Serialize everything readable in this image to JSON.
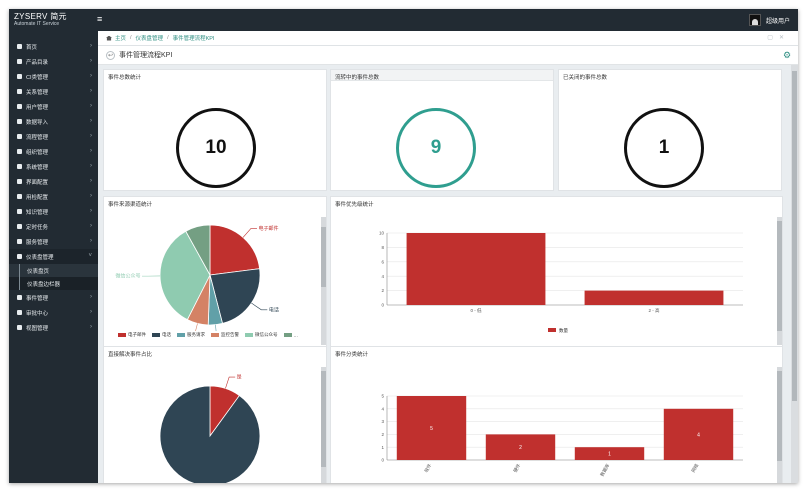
{
  "app": {
    "logo_main": "ZYSERV",
    "logo_cn": "简元",
    "logo_sub": "Automate IT Service",
    "user": "超级用户"
  },
  "sidebar": {
    "items": [
      {
        "label": "首页",
        "icon": "home-icon"
      },
      {
        "label": "产品目录",
        "icon": "catalog-icon"
      },
      {
        "label": "CI类管理",
        "icon": "ci-icon"
      },
      {
        "label": "关系管理",
        "icon": "relation-icon"
      },
      {
        "label": "用户管理",
        "icon": "user-icon"
      },
      {
        "label": "数据导入",
        "icon": "import-icon"
      },
      {
        "label": "流程管理",
        "icon": "flow-icon"
      },
      {
        "label": "组织管理",
        "icon": "org-icon"
      },
      {
        "label": "系统管理",
        "icon": "system-icon"
      },
      {
        "label": "界面配置",
        "icon": "ui-icon"
      },
      {
        "label": "用检配置",
        "icon": "check-icon"
      },
      {
        "label": "知识管理",
        "icon": "knowledge-icon"
      },
      {
        "label": "定时任务",
        "icon": "timer-icon"
      },
      {
        "label": "服务管理",
        "icon": "service-icon"
      },
      {
        "label": "仪表盘管理",
        "icon": "dashboard-icon"
      }
    ],
    "sub_items": [
      {
        "label": "仪表盘页"
      },
      {
        "label": "仪表盘边栏器"
      }
    ],
    "items_after": [
      {
        "label": "事件管理",
        "icon": "event-icon"
      },
      {
        "label": "审批中心",
        "icon": "approval-icon"
      },
      {
        "label": "视图管理",
        "icon": "view-icon"
      }
    ]
  },
  "breadcrumb": {
    "home": "主页",
    "level2": "仪表盘管理",
    "current": "事件管理流程KPI"
  },
  "page_title": "事件管理流程KPI",
  "kpis": [
    {
      "title": "事件总数统计",
      "value": "10",
      "color": "#111111"
    },
    {
      "title": "流转中的事件总数",
      "value": "9",
      "color": "#2f9e8f"
    },
    {
      "title": "已关闭的事件总数",
      "value": "1",
      "color": "#111111"
    }
  ],
  "colors": {
    "red": "#c0302e",
    "navy": "#2f4554",
    "teal": "#2f9e8f",
    "mint": "#8fcbb0",
    "salmon": "#d48265",
    "slate": "#61a0a8",
    "sage": "#749f83"
  },
  "chart_data": [
    {
      "type": "pie",
      "title": "事件来源渠道统计",
      "slices": [
        {
          "name": "电子邮件",
          "value": 2,
          "color": "#c0302e"
        },
        {
          "name": "电话",
          "value": 2,
          "color": "#2f4554"
        },
        {
          "name": "服务请求",
          "value": 0.4,
          "color": "#61a0a8"
        },
        {
          "name": "监控告警",
          "value": 0.6,
          "color": "#d48265"
        },
        {
          "name": "微信公众号",
          "value": 3,
          "color": "#8fcbb0"
        },
        {
          "name": "",
          "value": 0.7,
          "color": "#749f83"
        }
      ],
      "legend": [
        "电子邮件",
        "电话",
        "服务请求",
        "监控告警",
        "微信公众号",
        "…"
      ]
    },
    {
      "type": "bar",
      "title": "事件优先级统计",
      "categories": [
        "0 - 低",
        "2 - 高"
      ],
      "series": [
        {
          "name": "数量",
          "values": [
            10,
            2
          ]
        }
      ],
      "yticks": [
        0,
        2,
        4,
        6,
        8,
        10
      ],
      "ylim": [
        0,
        10
      ]
    },
    {
      "type": "pie",
      "title": "直接解决事件占比",
      "slices": [
        {
          "name": "是",
          "value": 1,
          "color": "#c0302e"
        },
        {
          "name": "",
          "value": 9,
          "color": "#2f4554"
        }
      ]
    },
    {
      "type": "bar",
      "title": "事件分类统计",
      "categories": [
        "软件",
        "硬件",
        "数据库",
        "网络"
      ],
      "series": [
        {
          "name": "",
          "values": [
            5,
            2,
            1,
            4
          ]
        }
      ],
      "value_labels": [
        "5",
        "2",
        "1",
        "4"
      ],
      "yticks": [
        0,
        1,
        2,
        3,
        4,
        5
      ],
      "ylim": [
        0,
        5
      ]
    }
  ]
}
